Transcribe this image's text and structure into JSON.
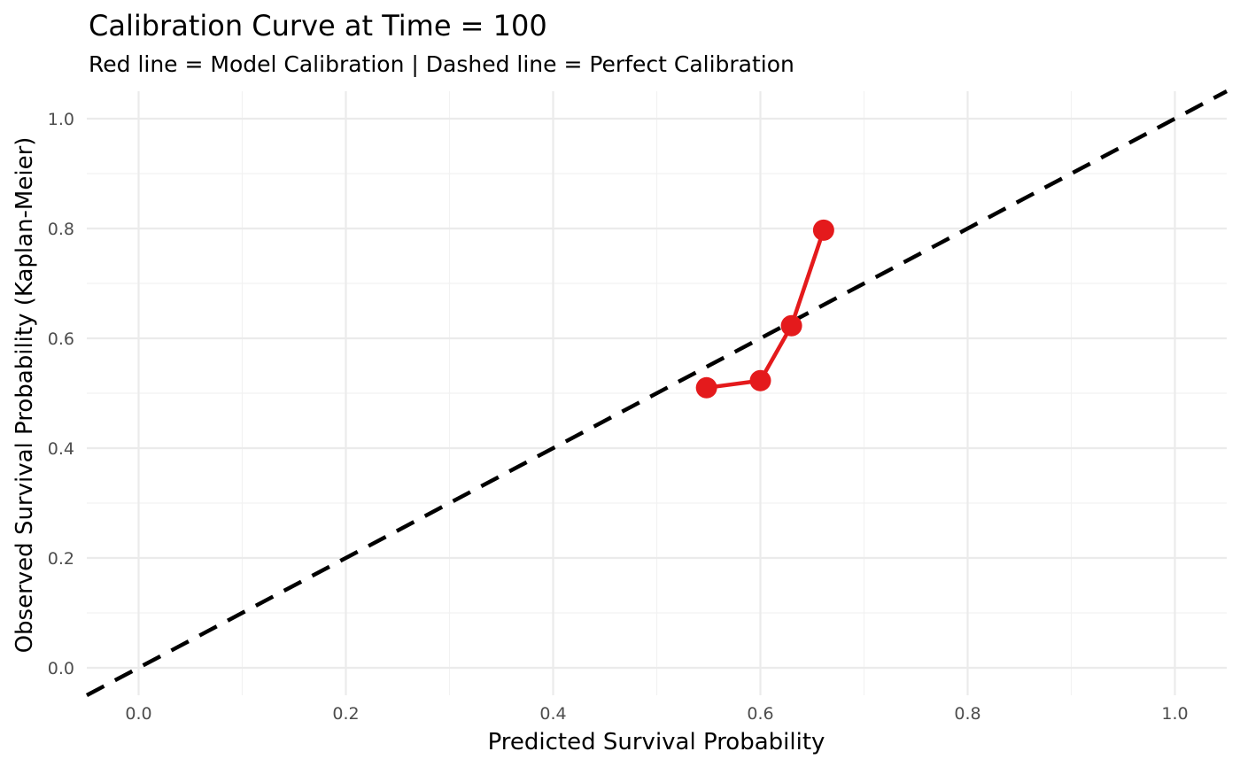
{
  "chart_data": {
    "type": "line",
    "title": "Calibration Curve at Time = 100",
    "subtitle": "Red line = Model Calibration | Dashed line = Perfect Calibration",
    "xlabel": "Predicted Survival Probability",
    "ylabel": "Observed Survival Probability (Kaplan-Meier)",
    "xlim": [
      -0.05,
      1.05
    ],
    "ylim": [
      -0.05,
      1.05
    ],
    "x_ticks": [
      0.0,
      0.2,
      0.4,
      0.6,
      0.8,
      1.0
    ],
    "x_tick_labels": [
      "0.0",
      "0.2",
      "0.4",
      "0.6",
      "0.8",
      "1.0"
    ],
    "y_ticks": [
      0.0,
      0.2,
      0.4,
      0.6,
      0.8,
      1.0
    ],
    "y_tick_labels": [
      "0.0",
      "0.2",
      "0.4",
      "0.6",
      "0.8",
      "1.0"
    ],
    "grid": true,
    "series": [
      {
        "style": "solid line with markers",
        "color": "#e41a1c",
        "x": [
          0.548,
          0.6,
          0.63,
          0.661
        ],
        "y": [
          0.51,
          0.523,
          0.623,
          0.797
        ]
      }
    ],
    "reference_line": {
      "style": "dashed",
      "color": "#000000",
      "slope": 1,
      "intercept": 0
    }
  }
}
